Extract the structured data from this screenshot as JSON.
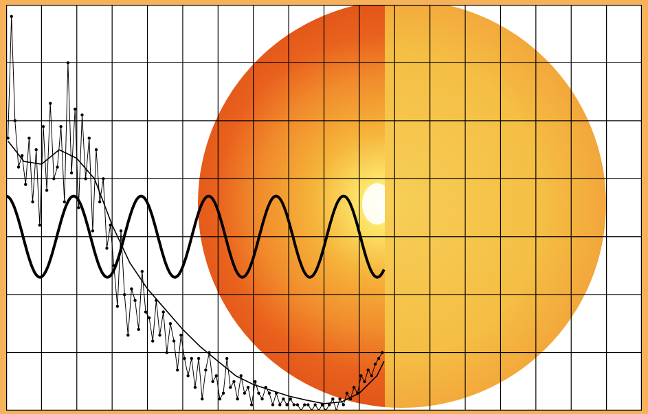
{
  "chart_data": {
    "type": "line",
    "title": "",
    "xlabel": "",
    "ylabel": "",
    "grid": true,
    "legend": "none",
    "x_range": [
      0,
      18
    ],
    "y_range": [
      0,
      7
    ],
    "series": [
      {
        "style": "dotted-noisy",
        "x": [
          0.05,
          0.15,
          0.25,
          0.35,
          0.45,
          0.55,
          0.65,
          0.75,
          0.85,
          0.95,
          1.05,
          1.15,
          1.25,
          1.35,
          1.45,
          1.55,
          1.65,
          1.75,
          1.85,
          1.95,
          2.05,
          2.15,
          2.25,
          2.35,
          2.45,
          2.55,
          2.65,
          2.75,
          2.85,
          2.95,
          3.05,
          3.15,
          3.25,
          3.35,
          3.45,
          3.55,
          3.65,
          3.75,
          3.85,
          3.95,
          4.05,
          4.15,
          4.25,
          4.35,
          4.45,
          4.55,
          4.65,
          4.75,
          4.85,
          4.95,
          5.05,
          5.15,
          5.25,
          5.35,
          5.45,
          5.55,
          5.65,
          5.75,
          5.85,
          5.95,
          6.05,
          6.15,
          6.25,
          6.35,
          6.45,
          6.55,
          6.65,
          6.75,
          6.85,
          6.95,
          7.05,
          7.15,
          7.25,
          7.35,
          7.45,
          7.55,
          7.65,
          7.75,
          7.85,
          7.95,
          8.05,
          8.15,
          8.25,
          8.35,
          8.45,
          8.55,
          8.65,
          8.75,
          8.85,
          8.95,
          9.05,
          9.15,
          9.25,
          9.35,
          9.45,
          9.55,
          9.65,
          9.75,
          9.85,
          9.95,
          10.05,
          10.15,
          10.25,
          10.35,
          10.45,
          10.55,
          10.65
        ],
        "y": [
          4.7,
          6.8,
          5.0,
          4.2,
          4.4,
          3.9,
          4.7,
          3.6,
          4.5,
          3.2,
          4.9,
          3.8,
          5.3,
          4.0,
          4.2,
          4.9,
          3.6,
          6.0,
          4.1,
          5.2,
          3.5,
          5.1,
          4.0,
          4.7,
          3.1,
          4.5,
          3.6,
          4.0,
          2.8,
          3.2,
          2.5,
          1.8,
          3.1,
          2.0,
          1.3,
          2.1,
          1.9,
          1.4,
          2.4,
          1.7,
          1.6,
          1.2,
          1.9,
          1.3,
          1.7,
          1.0,
          1.5,
          1.2,
          0.7,
          1.3,
          0.9,
          0.6,
          0.9,
          0.4,
          0.9,
          0.2,
          0.7,
          1.0,
          0.5,
          0.6,
          0.2,
          0.3,
          0.9,
          0.4,
          0.5,
          0.2,
          0.6,
          0.3,
          0.4,
          0.1,
          0.5,
          0.3,
          0.2,
          0.4,
          0.3,
          0.1,
          0.3,
          0.1,
          0.2,
          0.1,
          0.2,
          0.1,
          0.1,
          0.0,
          0.1,
          0.1,
          0.0,
          0.1,
          0.0,
          0.1,
          0.0,
          0.1,
          0.2,
          0.0,
          0.2,
          0.1,
          0.3,
          0.2,
          0.4,
          0.3,
          0.6,
          0.5,
          0.7,
          0.6,
          0.8,
          0.9,
          1.0
        ]
      },
      {
        "style": "smooth-trend",
        "x": [
          0.05,
          0.5,
          1.0,
          1.5,
          2.0,
          2.5,
          3.0,
          3.5,
          4.0,
          4.5,
          5.0,
          5.5,
          6.0,
          6.5,
          7.0,
          7.5,
          8.0,
          8.5,
          9.0,
          9.5,
          10.0,
          10.5,
          10.7
        ],
        "y": [
          4.65,
          4.3,
          4.25,
          4.5,
          4.35,
          4.0,
          3.2,
          2.55,
          2.1,
          1.75,
          1.4,
          1.1,
          0.85,
          0.6,
          0.45,
          0.35,
          0.25,
          0.18,
          0.12,
          0.15,
          0.3,
          0.6,
          0.85
        ]
      },
      {
        "style": "bold-sine",
        "x_start": 0.0,
        "x_end": 10.7,
        "periods": 5.6,
        "center": 3.0,
        "amplitude": 0.7
      }
    ]
  },
  "background": {
    "sun_color_outer": "#e24a12",
    "sun_color_mid": "#f07a18",
    "sun_color_right": "#f5b33a",
    "core_color": "#fff6b0",
    "frame_color": "#f6b25a"
  }
}
